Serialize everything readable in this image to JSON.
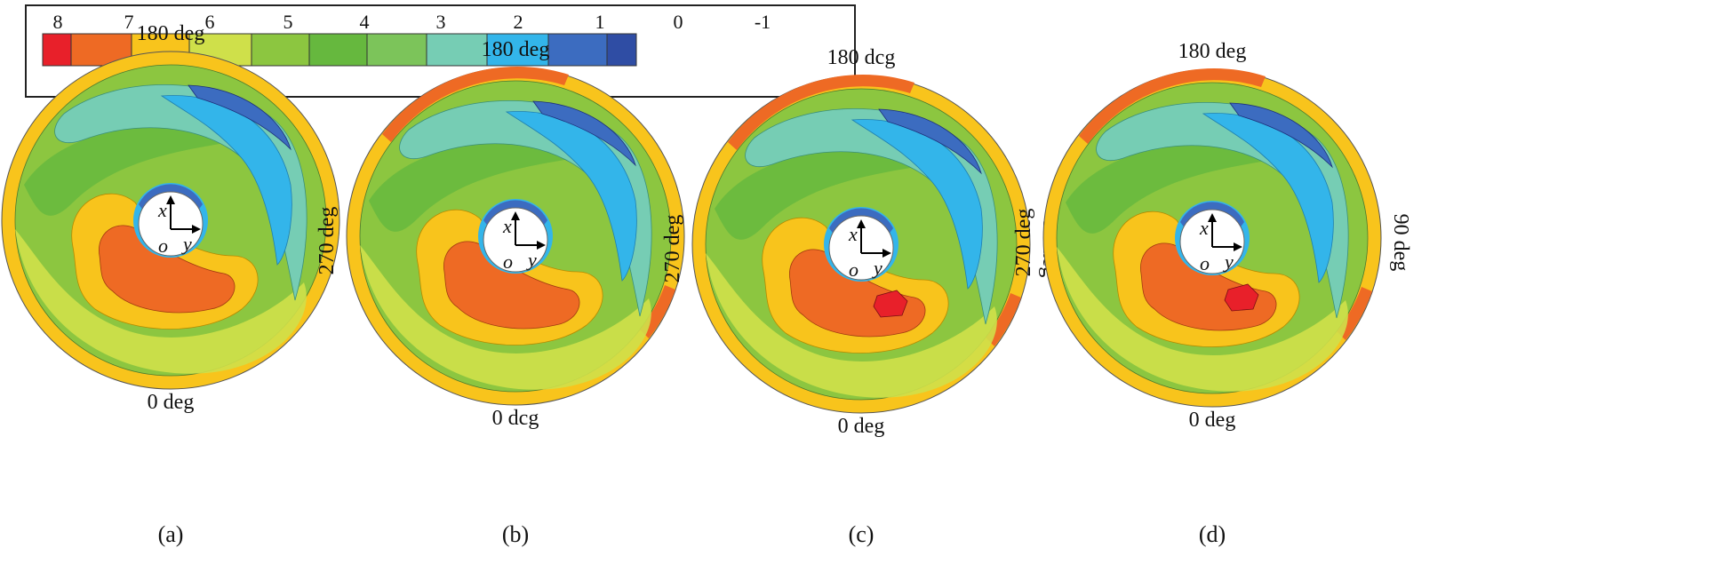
{
  "legend": {
    "tick_labels": [
      "8",
      "7",
      "6",
      "5",
      "4",
      "3",
      "2",
      "1",
      "0",
      "-1"
    ],
    "swatch_colors": [
      "#e8202a",
      "#ee6a24",
      "#f8c41c",
      "#cfe04a",
      "#8cc640",
      "#66b83e",
      "#7cc45a",
      "#76cdb4",
      "#33b5ea",
      "#3c6cc0",
      "#2f4da4"
    ]
  },
  "angle_labels": {
    "top": "180 deg",
    "bottom": "0 deg",
    "left": "270 deg",
    "right": "90 deg"
  },
  "axis_labels": {
    "x": "x",
    "y": "y",
    "origin": "o"
  },
  "panels": [
    {
      "caption": "(a)",
      "top_label": "180 deg",
      "bottom_label": "0 deg",
      "has_peak": false
    },
    {
      "caption": "(b)",
      "top_label": "180 deg",
      "bottom_label": "0 dcg",
      "has_peak": false
    },
    {
      "caption": "(c)",
      "top_label": "180 dcg",
      "bottom_label": "0 deg",
      "has_peak": true
    },
    {
      "caption": "(d)",
      "top_label": "180 deg",
      "bottom_label": "0 deg",
      "has_peak": true
    }
  ],
  "colors": {
    "level8": "#e8202a",
    "level7": "#ee6a24",
    "level6": "#f8c41c",
    "level5": "#cfe04a",
    "level4": "#8cc640",
    "level3": "#66b83e",
    "level1": "#76cdb4",
    "level0": "#33b5ea",
    "levelm1": "#3c6cc0"
  }
}
